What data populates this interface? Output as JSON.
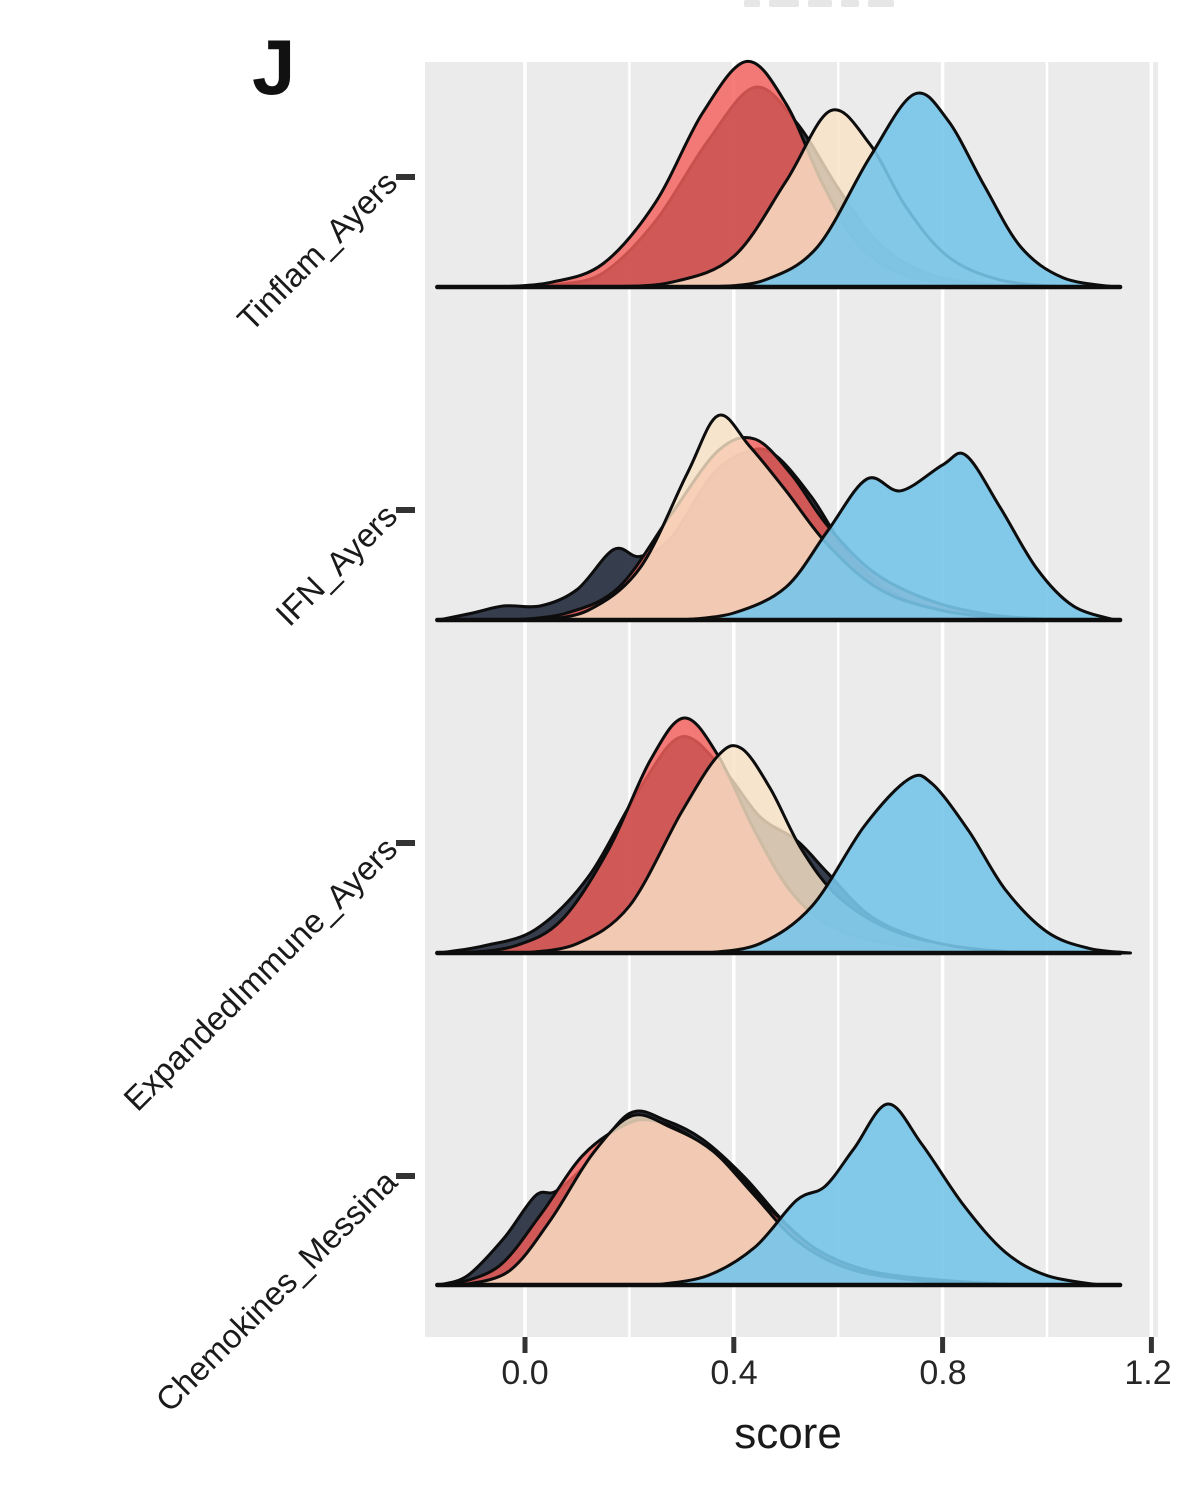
{
  "header": {
    "panel_label": "J"
  },
  "colors": {
    "panel_bg": "#EBEBEB",
    "gridline": "#FFFFFF",
    "curve_outline": "#0D0D0D",
    "baseline": "#0D0D0D",
    "tick_mark": "#333333",
    "group_dark": "rgba(42,50,66,0.94)",
    "group_red": "rgba(243,95,92,0.82)",
    "group_tan": "rgba(249,226,198,0.82)",
    "group_blue": "rgba(118,196,233,0.90)"
  },
  "chart_data": {
    "type": "area",
    "subtype": "ridgeline_density",
    "title": "",
    "xlabel": "score",
    "ylabel": "",
    "x_axis": {
      "range": [
        -0.19,
        1.21
      ],
      "ticks": [
        0.0,
        0.4,
        0.8,
        1.2
      ],
      "tick_labels": [
        "0.0",
        "0.4",
        "0.8",
        "1.2"
      ],
      "minor_gridlines": [
        0.2,
        0.6,
        1.0
      ],
      "grid": "on"
    },
    "y_axis": {
      "categories": [
        "Tinflam_Ayers",
        "IFN_Ayers",
        "ExpandedImmune_Ayers",
        "Chemokines_Messina"
      ]
    },
    "legend": "none",
    "groups": [
      {
        "name": "dark",
        "fill": "rgba(42,50,66,0.94)"
      },
      {
        "name": "red",
        "fill": "rgba(243,95,92,0.82)"
      },
      {
        "name": "tan",
        "fill": "rgba(249,226,198,0.82)"
      },
      {
        "name": "blue",
        "fill": "rgba(118,196,233,0.90)"
      }
    ],
    "rows": [
      {
        "label": "Tinflam_Ayers",
        "series": [
          {
            "group": "dark",
            "points": [
              [
                -0.02,
                0
              ],
              [
                0.06,
                0.01
              ],
              [
                0.15,
                0.06
              ],
              [
                0.25,
                0.28
              ],
              [
                0.35,
                0.62
              ],
              [
                0.44,
                0.85
              ],
              [
                0.52,
                0.7
              ],
              [
                0.6,
                0.42
              ],
              [
                0.68,
                0.18
              ],
              [
                0.78,
                0.05
              ],
              [
                0.9,
                0.01
              ],
              [
                1.0,
                0
              ]
            ]
          },
          {
            "group": "red",
            "points": [
              [
                -0.05,
                0
              ],
              [
                0.05,
                0.02
              ],
              [
                0.15,
                0.1
              ],
              [
                0.25,
                0.36
              ],
              [
                0.34,
                0.74
              ],
              [
                0.425,
                0.96
              ],
              [
                0.5,
                0.78
              ],
              [
                0.57,
                0.44
              ],
              [
                0.64,
                0.18
              ],
              [
                0.73,
                0.05
              ],
              [
                0.85,
                0.01
              ],
              [
                1.0,
                0
              ]
            ]
          },
          {
            "group": "tan",
            "points": [
              [
                0.15,
                0
              ],
              [
                0.28,
                0.02
              ],
              [
                0.4,
                0.13
              ],
              [
                0.5,
                0.45
              ],
              [
                0.585,
                0.75
              ],
              [
                0.66,
                0.61
              ],
              [
                0.73,
                0.34
              ],
              [
                0.81,
                0.13
              ],
              [
                0.91,
                0.03
              ],
              [
                1.03,
                0
              ]
            ]
          },
          {
            "group": "blue",
            "points": [
              [
                0.36,
                0
              ],
              [
                0.46,
                0.03
              ],
              [
                0.56,
                0.17
              ],
              [
                0.66,
                0.55
              ],
              [
                0.745,
                0.82
              ],
              [
                0.81,
                0.71
              ],
              [
                0.88,
                0.43
              ],
              [
                0.95,
                0.17
              ],
              [
                1.03,
                0.04
              ],
              [
                1.13,
                0
              ]
            ]
          }
        ]
      },
      {
        "label": "IFN_Ayers",
        "series": [
          {
            "group": "dark",
            "points": [
              [
                -0.165,
                0
              ],
              [
                -0.1,
                0.03
              ],
              [
                -0.04,
                0.06
              ],
              [
                0.03,
                0.06
              ],
              [
                0.1,
                0.13
              ],
              [
                0.17,
                0.3
              ],
              [
                0.22,
                0.27
              ],
              [
                0.28,
                0.35
              ],
              [
                0.36,
                0.62
              ],
              [
                0.43,
                0.72
              ],
              [
                0.48,
                0.7
              ],
              [
                0.55,
                0.52
              ],
              [
                0.62,
                0.28
              ],
              [
                0.7,
                0.12
              ],
              [
                0.8,
                0.04
              ],
              [
                0.92,
                0
              ]
            ]
          },
          {
            "group": "red",
            "points": [
              [
                -0.02,
                0
              ],
              [
                0.08,
                0.03
              ],
              [
                0.18,
                0.14
              ],
              [
                0.28,
                0.45
              ],
              [
                0.37,
                0.72
              ],
              [
                0.44,
                0.77
              ],
              [
                0.51,
                0.62
              ],
              [
                0.58,
                0.4
              ],
              [
                0.67,
                0.2
              ],
              [
                0.78,
                0.08
              ],
              [
                0.9,
                0.02
              ],
              [
                1.04,
                0
              ]
            ]
          },
          {
            "group": "tan",
            "points": [
              [
                0.02,
                0
              ],
              [
                0.12,
                0.04
              ],
              [
                0.22,
                0.22
              ],
              [
                0.31,
                0.62
              ],
              [
                0.37,
                0.87
              ],
              [
                0.43,
                0.74
              ],
              [
                0.5,
                0.55
              ],
              [
                0.58,
                0.32
              ],
              [
                0.68,
                0.13
              ],
              [
                0.8,
                0.04
              ],
              [
                0.95,
                0
              ]
            ]
          },
          {
            "group": "blue",
            "points": [
              [
                0.3,
                0
              ],
              [
                0.4,
                0.03
              ],
              [
                0.5,
                0.14
              ],
              [
                0.58,
                0.38
              ],
              [
                0.655,
                0.6
              ],
              [
                0.72,
                0.55
              ],
              [
                0.8,
                0.66
              ],
              [
                0.845,
                0.7
              ],
              [
                0.91,
                0.48
              ],
              [
                0.98,
                0.22
              ],
              [
                1.05,
                0.06
              ],
              [
                1.13,
                0
              ]
            ]
          }
        ]
      },
      {
        "label": "ExpandedImmune_Ayers",
        "series": [
          {
            "group": "dark",
            "points": [
              [
                -0.165,
                0
              ],
              [
                -0.08,
                0.03
              ],
              [
                0.02,
                0.1
              ],
              [
                0.12,
                0.32
              ],
              [
                0.22,
                0.7
              ],
              [
                0.3,
                0.92
              ],
              [
                0.38,
                0.78
              ],
              [
                0.45,
                0.58
              ],
              [
                0.52,
                0.48
              ],
              [
                0.58,
                0.34
              ],
              [
                0.66,
                0.16
              ],
              [
                0.76,
                0.06
              ],
              [
                0.88,
                0.01
              ],
              [
                1.0,
                0
              ]
            ]
          },
          {
            "group": "red",
            "points": [
              [
                -0.12,
                0
              ],
              [
                -0.02,
                0.03
              ],
              [
                0.07,
                0.14
              ],
              [
                0.16,
                0.44
              ],
              [
                0.24,
                0.82
              ],
              [
                0.305,
                1.0
              ],
              [
                0.37,
                0.84
              ],
              [
                0.44,
                0.52
              ],
              [
                0.51,
                0.26
              ],
              [
                0.59,
                0.11
              ],
              [
                0.7,
                0.04
              ],
              [
                0.85,
                0.01
              ],
              [
                1.0,
                0
              ]
            ]
          },
          {
            "group": "tan",
            "points": [
              [
                0.0,
                0
              ],
              [
                0.1,
                0.04
              ],
              [
                0.2,
                0.2
              ],
              [
                0.3,
                0.6
              ],
              [
                0.37,
                0.84
              ],
              [
                0.415,
                0.87
              ],
              [
                0.47,
                0.7
              ],
              [
                0.53,
                0.44
              ],
              [
                0.6,
                0.24
              ],
              [
                0.7,
                0.1
              ],
              [
                0.82,
                0.03
              ],
              [
                0.95,
                0
              ]
            ]
          },
          {
            "group": "blue",
            "points": [
              [
                0.35,
                0
              ],
              [
                0.45,
                0.04
              ],
              [
                0.55,
                0.2
              ],
              [
                0.65,
                0.54
              ],
              [
                0.735,
                0.74
              ],
              [
                0.78,
                0.72
              ],
              [
                0.85,
                0.52
              ],
              [
                0.92,
                0.27
              ],
              [
                1.0,
                0.09
              ],
              [
                1.08,
                0.02
              ],
              [
                1.16,
                0
              ]
            ]
          }
        ]
      },
      {
        "label": "Chemokines_Messina",
        "series": [
          {
            "group": "dark",
            "points": [
              [
                -0.165,
                0
              ],
              [
                -0.11,
                0.04
              ],
              [
                -0.04,
                0.2
              ],
              [
                0.02,
                0.38
              ],
              [
                0.06,
                0.4
              ],
              [
                0.12,
                0.52
              ],
              [
                0.2,
                0.73
              ],
              [
                0.27,
                0.7
              ],
              [
                0.34,
                0.62
              ],
              [
                0.42,
                0.46
              ],
              [
                0.5,
                0.26
              ],
              [
                0.58,
                0.12
              ],
              [
                0.68,
                0.04
              ],
              [
                0.82,
                0.01
              ],
              [
                0.95,
                0
              ]
            ]
          },
          {
            "group": "red",
            "points": [
              [
                -0.14,
                0
              ],
              [
                -0.05,
                0.08
              ],
              [
                0.03,
                0.3
              ],
              [
                0.11,
                0.55
              ],
              [
                0.19,
                0.68
              ],
              [
                0.245,
                0.7
              ],
              [
                0.32,
                0.63
              ],
              [
                0.4,
                0.49
              ],
              [
                0.48,
                0.3
              ],
              [
                0.56,
                0.15
              ],
              [
                0.66,
                0.06
              ],
              [
                0.8,
                0.02
              ],
              [
                0.95,
                0
              ]
            ]
          },
          {
            "group": "tan",
            "points": [
              [
                -0.12,
                0
              ],
              [
                -0.03,
                0.06
              ],
              [
                0.05,
                0.28
              ],
              [
                0.13,
                0.56
              ],
              [
                0.205,
                0.72
              ],
              [
                0.28,
                0.67
              ],
              [
                0.36,
                0.57
              ],
              [
                0.44,
                0.38
              ],
              [
                0.52,
                0.19
              ],
              [
                0.62,
                0.07
              ],
              [
                0.75,
                0.02
              ],
              [
                0.9,
                0
              ]
            ]
          },
          {
            "group": "blue",
            "points": [
              [
                0.25,
                0
              ],
              [
                0.35,
                0.04
              ],
              [
                0.44,
                0.16
              ],
              [
                0.52,
                0.36
              ],
              [
                0.575,
                0.42
              ],
              [
                0.63,
                0.58
              ],
              [
                0.695,
                0.77
              ],
              [
                0.76,
                0.6
              ],
              [
                0.84,
                0.34
              ],
              [
                0.92,
                0.14
              ],
              [
                1.0,
                0.04
              ],
              [
                1.1,
                0
              ]
            ]
          }
        ]
      }
    ]
  }
}
